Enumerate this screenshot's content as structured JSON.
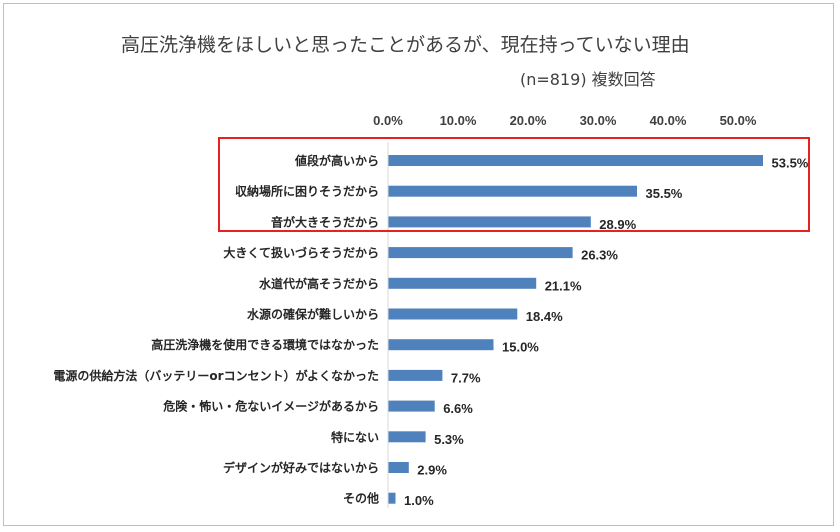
{
  "chart_data": {
    "type": "bar",
    "orientation": "horizontal",
    "title": "高圧洗浄機をほしいと思ったことがあるが、現在持っていない理由",
    "subtitle": "(n=819) 複数回答",
    "xlim": [
      0,
      55
    ],
    "ticks": [
      "0.0%",
      "10.0%",
      "20.0%",
      "30.0%",
      "40.0%",
      "50.0%"
    ],
    "tick_values": [
      0,
      10,
      20,
      30,
      40,
      50
    ],
    "categories": [
      "値段が高いから",
      "収納場所に困りそうだから",
      "音が大きそうだから",
      "大きくて扱いづらそうだから",
      "水道代が高そうだから",
      "水源の確保が難しいから",
      "高圧洗浄機を使用できる環境ではなかった",
      "電源の供給方法（バッテリーorコンセント）がよくなかった",
      "危険・怖い・危ないイメージがあるから",
      "特にない",
      "デザインが好みではないから",
      "その他"
    ],
    "values": [
      53.5,
      35.5,
      28.9,
      26.3,
      21.1,
      18.4,
      15.0,
      7.7,
      6.6,
      5.3,
      2.9,
      1.0
    ],
    "value_labels": [
      "53.5%",
      "35.5%",
      "28.9%",
      "26.3%",
      "21.1%",
      "18.4%",
      "15.0%",
      "7.7%",
      "6.6%",
      "5.3%",
      "2.9%",
      "1.0%"
    ],
    "highlighted_categories": 3,
    "grid": false,
    "legend": "none",
    "colors": {
      "bar": "#4f81bd",
      "highlight_box": "#e8211f",
      "text": "#262626"
    }
  }
}
